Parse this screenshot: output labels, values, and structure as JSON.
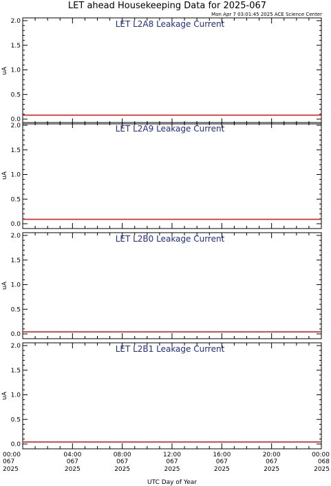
{
  "header": {
    "title": "LET ahead Housekeeping Data for 2025-067",
    "timestamp": "Mon Apr  7 03:01:45 2025 ACE Science Center"
  },
  "colors": {
    "trace": "#e02020",
    "panel_title": "#1e2a9a",
    "axes": "#000000"
  },
  "chart_data": [
    {
      "type": "line",
      "title": "LET L2A8 Leakage Current",
      "ylabel": "uA",
      "ylim": [
        0,
        2.0
      ],
      "yticks": [
        "0.0",
        "0.5",
        "1.0",
        "1.5",
        "2.0"
      ],
      "x": [
        0,
        24
      ],
      "series": [
        {
          "values": [
            0.08,
            0.08
          ]
        }
      ]
    },
    {
      "type": "line",
      "title": "LET L2A9 Leakage Current",
      "ylabel": "uA",
      "ylim": [
        0,
        2.0
      ],
      "yticks": [
        "0.0",
        "0.5",
        "1.0",
        "1.5",
        "2.0"
      ],
      "x": [
        0,
        24
      ],
      "series": [
        {
          "values": [
            0.09,
            0.09
          ]
        }
      ]
    },
    {
      "type": "line",
      "title": "LET L2B0 Leakage Current",
      "ylabel": "uA",
      "ylim": [
        0,
        2.0
      ],
      "yticks": [
        "0.0",
        "0.5",
        "1.0",
        "1.5",
        "2.0"
      ],
      "x": [
        0,
        24
      ],
      "series": [
        {
          "values": [
            0.04,
            0.04
          ]
        }
      ]
    },
    {
      "type": "line",
      "title": "LET L2B1 Leakage Current",
      "ylabel": "uA",
      "ylim": [
        0,
        2.0
      ],
      "yticks": [
        "0.0",
        "0.5",
        "1.0",
        "1.5",
        "2.0"
      ],
      "x": [
        0,
        24
      ],
      "series": [
        {
          "values": [
            0.04,
            0.04
          ]
        }
      ]
    }
  ],
  "x_axis": {
    "label": "UTC Day of Year",
    "range": [
      0,
      24
    ],
    "ticks": [
      {
        "value": 0,
        "time": "00:00",
        "day": "067",
        "year": "2025"
      },
      {
        "value": 4,
        "time": "04:00",
        "day": "067",
        "year": "2025"
      },
      {
        "value": 8,
        "time": "08:00",
        "day": "067",
        "year": "2025"
      },
      {
        "value": 12,
        "time": "12:00",
        "day": "067",
        "year": "2025"
      },
      {
        "value": 16,
        "time": "16:00",
        "day": "067",
        "year": "2025"
      },
      {
        "value": 20,
        "time": "20:00",
        "day": "067",
        "year": "2025"
      },
      {
        "value": 24,
        "time": "00:00",
        "day": "068",
        "year": "2025"
      }
    ]
  }
}
